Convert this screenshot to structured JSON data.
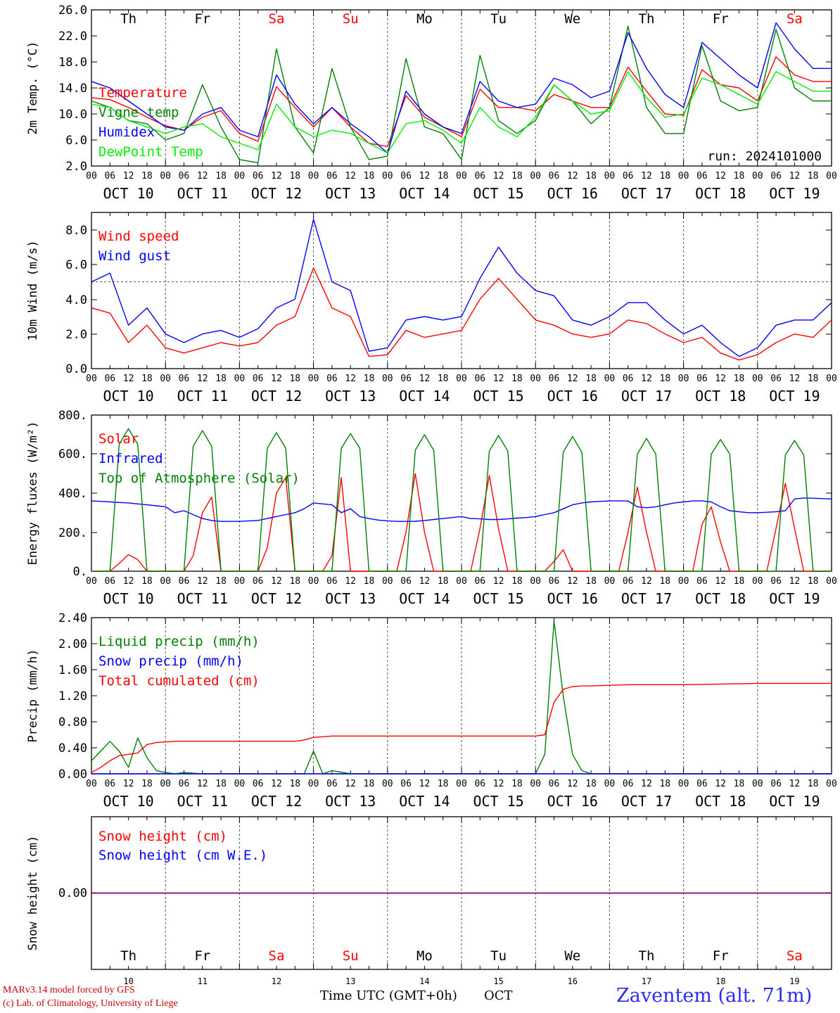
{
  "days": [
    {
      "dow": "Th",
      "weekend": false,
      "date": "OCT 10",
      "num": "10"
    },
    {
      "dow": "Fr",
      "weekend": false,
      "date": "OCT 11",
      "num": "11"
    },
    {
      "dow": "Sa",
      "weekend": true,
      "date": "OCT 12",
      "num": "12"
    },
    {
      "dow": "Su",
      "weekend": true,
      "date": "OCT 13",
      "num": "13"
    },
    {
      "dow": "Mo",
      "weekend": false,
      "date": "OCT 14",
      "num": "14"
    },
    {
      "dow": "Tu",
      "weekend": false,
      "date": "OCT 15",
      "num": "15"
    },
    {
      "dow": "We",
      "weekend": false,
      "date": "OCT 16",
      "num": "16"
    },
    {
      "dow": "Th",
      "weekend": false,
      "date": "OCT 17",
      "num": "17"
    },
    {
      "dow": "Fr",
      "weekend": false,
      "date": "OCT 18",
      "num": "18"
    },
    {
      "dow": "Sa",
      "weekend": true,
      "date": "OCT 19",
      "num": "19"
    }
  ],
  "hour_ticks": [
    "00",
    "06",
    "12",
    "18"
  ],
  "end_tick": "00",
  "colors": {
    "red": "#ff0000",
    "green": "#008000",
    "blue": "#0000ff",
    "lightgreen": "#00ee00",
    "purple": "#800080",
    "grid": "#555555"
  },
  "chart_data": [
    {
      "id": "temp",
      "type": "line",
      "ylabel": "2m Temp. (°C)",
      "ylim": [
        2,
        26
      ],
      "yticks": [
        "26.0",
        "22.0",
        "18.0",
        "14.0",
        "10.0",
        "6.0",
        "2.0"
      ],
      "note": "run: 2024101000",
      "x_hours": [
        0,
        6,
        12,
        18,
        24,
        30,
        36,
        42,
        48,
        54,
        60,
        66,
        72,
        78,
        84,
        90,
        96,
        102,
        108,
        114,
        120,
        126,
        132,
        138,
        144,
        150,
        156,
        162,
        168,
        174,
        180,
        186,
        192,
        198,
        204,
        210,
        216,
        222,
        228,
        234,
        240
      ],
      "series": [
        {
          "name": "Temperature",
          "color": "red",
          "values": [
            12.5,
            12.2,
            11.0,
            9.5,
            8.2,
            7.5,
            9.5,
            10.5,
            7.0,
            5.8,
            14.2,
            11.0,
            8.0,
            11.0,
            8.0,
            5.5,
            5.0,
            12.8,
            9.5,
            8.0,
            6.5,
            13.8,
            11.0,
            11.0,
            10.5,
            13.0,
            12.0,
            11.0,
            11.0,
            17.2,
            13.5,
            10.0,
            9.8,
            16.8,
            14.5,
            14.0,
            12.0,
            18.8,
            16.0,
            15.0,
            15.0
          ]
        },
        {
          "name": "Vigne temp",
          "color": "green",
          "values": [
            12.0,
            11.0,
            9.0,
            8.5,
            6.0,
            7.0,
            14.5,
            8.0,
            3.0,
            2.5,
            20.0,
            8.0,
            4.0,
            17.0,
            8.0,
            3.0,
            3.5,
            18.5,
            8.0,
            7.0,
            3.0,
            19.0,
            9.0,
            7.0,
            9.0,
            14.5,
            12.0,
            8.5,
            11.0,
            23.5,
            11.0,
            7.0,
            7.0,
            20.5,
            12.0,
            10.5,
            11.0,
            23.0,
            14.0,
            12.0,
            12.0
          ]
        },
        {
          "name": "Humidex",
          "color": "blue",
          "values": [
            15.0,
            14.0,
            12.0,
            10.0,
            8.0,
            7.5,
            10.0,
            11.0,
            7.5,
            6.5,
            16.0,
            11.5,
            8.5,
            11.0,
            8.5,
            6.5,
            4.0,
            13.5,
            10.0,
            8.0,
            7.0,
            15.0,
            12.0,
            11.0,
            11.5,
            15.5,
            14.5,
            12.5,
            13.5,
            22.5,
            17.0,
            13.0,
            11.0,
            21.0,
            18.5,
            16.0,
            14.0,
            24.0,
            20.0,
            17.0,
            17.0
          ]
        },
        {
          "name": "DewPoint Temp",
          "color": "lightgreen",
          "values": [
            11.5,
            11.0,
            9.0,
            8.0,
            7.0,
            8.0,
            8.5,
            6.5,
            5.5,
            4.5,
            11.5,
            8.0,
            6.5,
            7.5,
            7.0,
            5.5,
            4.0,
            8.5,
            9.0,
            7.5,
            5.5,
            11.0,
            8.0,
            6.5,
            9.5,
            14.5,
            12.0,
            10.0,
            10.5,
            16.5,
            12.5,
            9.5,
            10.0,
            15.5,
            14.5,
            13.0,
            11.5,
            16.5,
            15.0,
            13.5,
            13.5
          ]
        }
      ]
    },
    {
      "id": "wind",
      "type": "line",
      "ylabel": "10m Wind (m/s)",
      "ylim": [
        0,
        9
      ],
      "yticks": [
        "8.0",
        "6.0",
        "4.0",
        "2.0",
        "0.0"
      ],
      "ref_line": 5.0,
      "x_hours": [
        0,
        6,
        12,
        18,
        24,
        30,
        36,
        42,
        48,
        54,
        60,
        66,
        72,
        78,
        84,
        90,
        96,
        102,
        108,
        114,
        120,
        126,
        132,
        138,
        144,
        150,
        156,
        162,
        168,
        174,
        180,
        186,
        192,
        198,
        204,
        210,
        216,
        222,
        228,
        234,
        240
      ],
      "series": [
        {
          "name": "Wind speed",
          "color": "red",
          "values": [
            3.5,
            3.2,
            1.5,
            2.5,
            1.2,
            0.9,
            1.2,
            1.5,
            1.3,
            1.5,
            2.5,
            3.0,
            5.8,
            3.5,
            3.0,
            0.7,
            0.8,
            2.2,
            1.8,
            2.0,
            2.2,
            4.0,
            5.2,
            4.0,
            2.8,
            2.5,
            2.0,
            1.8,
            2.0,
            2.8,
            2.6,
            2.0,
            1.5,
            1.8,
            0.9,
            0.5,
            0.8,
            1.5,
            2.0,
            1.8,
            2.8
          ]
        },
        {
          "name": "Wind gust",
          "color": "blue",
          "values": [
            5.0,
            5.5,
            2.5,
            3.5,
            2.0,
            1.5,
            2.0,
            2.2,
            1.8,
            2.3,
            3.5,
            4.0,
            8.6,
            5.0,
            4.5,
            1.0,
            1.2,
            2.8,
            3.0,
            2.8,
            3.0,
            5.2,
            7.0,
            5.5,
            4.5,
            4.2,
            2.8,
            2.5,
            3.0,
            3.8,
            3.8,
            2.8,
            2.0,
            2.5,
            1.5,
            0.7,
            1.2,
            2.5,
            2.8,
            2.8,
            3.8
          ]
        }
      ]
    },
    {
      "id": "flux",
      "type": "line",
      "ylabel": "Energy fluxes (W/m²)",
      "ylim": [
        0,
        800
      ],
      "yticks": [
        "800.",
        "600.",
        "400.",
        "200.",
        "0."
      ],
      "x_hours": [
        0,
        3,
        6,
        9,
        12,
        15,
        18,
        21,
        24,
        27,
        30,
        33,
        36,
        39,
        42,
        45,
        48,
        51,
        54,
        57,
        60,
        63,
        66,
        69,
        72,
        75,
        78,
        81,
        84,
        87,
        90,
        93,
        96,
        99,
        102,
        105,
        108,
        111,
        114,
        117,
        120,
        123,
        126,
        129,
        132,
        135,
        138,
        141,
        144,
        147,
        150,
        153,
        156,
        159,
        162,
        165,
        168,
        171,
        174,
        177,
        180,
        183,
        186,
        189,
        192,
        195,
        198,
        201,
        204,
        207,
        210,
        213,
        216,
        219,
        222,
        225,
        228,
        231,
        234,
        237,
        240
      ],
      "series": [
        {
          "name": "Solar",
          "color": "red",
          "values": [
            0,
            0,
            0,
            40,
            85,
            60,
            0,
            0,
            0,
            0,
            0,
            80,
            300,
            380,
            0,
            0,
            0,
            0,
            0,
            120,
            400,
            480,
            0,
            0,
            0,
            0,
            80,
            480,
            0,
            0,
            0,
            0,
            0,
            0,
            200,
            500,
            200,
            0,
            0,
            0,
            0,
            0,
            220,
            490,
            220,
            0,
            0,
            0,
            0,
            0,
            50,
            110,
            0,
            0,
            0,
            0,
            0,
            0,
            200,
            430,
            200,
            0,
            0,
            0,
            0,
            0,
            240,
            330,
            150,
            0,
            0,
            0,
            0,
            0,
            220,
            450,
            220,
            0,
            0,
            0,
            0
          ]
        },
        {
          "name": "Infrared",
          "color": "blue",
          "values": [
            360,
            358,
            355,
            352,
            350,
            345,
            340,
            335,
            330,
            300,
            310,
            290,
            270,
            260,
            255,
            255,
            255,
            258,
            260,
            270,
            280,
            290,
            300,
            320,
            350,
            345,
            340,
            300,
            320,
            280,
            270,
            262,
            258,
            255,
            255,
            256,
            260,
            265,
            270,
            275,
            280,
            270,
            268,
            265,
            265,
            268,
            272,
            275,
            280,
            290,
            300,
            320,
            340,
            350,
            355,
            358,
            360,
            360,
            360,
            330,
            325,
            330,
            340,
            350,
            355,
            360,
            360,
            355,
            330,
            310,
            305,
            300,
            300,
            302,
            305,
            310,
            370,
            375,
            374,
            372,
            370
          ]
        },
        {
          "name": "Top of Atmosphere (Solar)",
          "color": "green",
          "values": [
            0,
            0,
            0,
            650,
            730,
            650,
            0,
            0,
            0,
            0,
            0,
            640,
            720,
            640,
            0,
            0,
            0,
            0,
            0,
            630,
            710,
            630,
            0,
            0,
            0,
            0,
            0,
            630,
            705,
            630,
            0,
            0,
            0,
            0,
            0,
            620,
            700,
            620,
            0,
            0,
            0,
            0,
            0,
            615,
            695,
            615,
            0,
            0,
            0,
            0,
            0,
            610,
            690,
            610,
            0,
            0,
            0,
            0,
            0,
            600,
            680,
            600,
            0,
            0,
            0,
            0,
            0,
            600,
            675,
            600,
            0,
            0,
            0,
            0,
            0,
            595,
            670,
            595,
            0,
            0,
            0
          ]
        }
      ]
    },
    {
      "id": "precip",
      "type": "line",
      "ylabel": "Precip (mm/h)",
      "ylim": [
        0,
        2.4
      ],
      "yticks": [
        "2.40",
        "2.00",
        "1.60",
        "1.20",
        "0.80",
        "0.40",
        "0.00"
      ],
      "x_hours": [
        0,
        3,
        6,
        9,
        12,
        15,
        18,
        21,
        24,
        27,
        30,
        36,
        42,
        48,
        54,
        60,
        66,
        69,
        72,
        75,
        78,
        84,
        90,
        96,
        102,
        108,
        114,
        120,
        126,
        132,
        138,
        144,
        147,
        150,
        153,
        156,
        159,
        162,
        168,
        174,
        180,
        192,
        204,
        216,
        228,
        240
      ],
      "series": [
        {
          "name": "Liquid precip (mm/h)",
          "color": "green",
          "values": [
            0.2,
            0.35,
            0.5,
            0.35,
            0.1,
            0.55,
            0.25,
            0.05,
            0.02,
            0.0,
            0.02,
            0.0,
            0.0,
            0.0,
            0.0,
            0.0,
            0.0,
            0.0,
            0.35,
            0.0,
            0.05,
            0.0,
            0.0,
            0.0,
            0.0,
            0.0,
            0.0,
            0.0,
            0.0,
            0.0,
            0.0,
            0.0,
            0.3,
            2.35,
            1.2,
            0.3,
            0.05,
            0.0,
            0.0,
            0.0,
            0.0,
            0.0,
            0.0,
            0.0,
            0.0,
            0.0
          ]
        },
        {
          "name": "Snow precip (mm/h)",
          "color": "blue",
          "values": [
            0,
            0,
            0,
            0,
            0,
            0,
            0,
            0,
            0,
            0,
            0,
            0,
            0,
            0,
            0,
            0,
            0,
            0,
            0,
            0,
            0,
            0,
            0,
            0,
            0,
            0,
            0,
            0,
            0,
            0,
            0,
            0,
            0,
            0,
            0,
            0,
            0,
            0,
            0,
            0,
            0,
            0,
            0,
            0,
            0,
            0
          ]
        },
        {
          "name": "Total cumulated (cm)",
          "color": "red",
          "values": [
            0.02,
            0.1,
            0.2,
            0.28,
            0.3,
            0.32,
            0.45,
            0.48,
            0.49,
            0.5,
            0.5,
            0.5,
            0.5,
            0.5,
            0.5,
            0.5,
            0.5,
            0.52,
            0.56,
            0.57,
            0.58,
            0.58,
            0.58,
            0.58,
            0.58,
            0.58,
            0.58,
            0.58,
            0.58,
            0.58,
            0.58,
            0.58,
            0.6,
            1.1,
            1.3,
            1.34,
            1.35,
            1.35,
            1.36,
            1.37,
            1.37,
            1.37,
            1.38,
            1.39,
            1.39,
            1.39
          ]
        }
      ]
    },
    {
      "id": "snow",
      "type": "line",
      "ylabel": "Snow height (cm)",
      "ylim": [
        -1,
        1
      ],
      "yticks": [
        "0.00"
      ],
      "x_hours": [
        0,
        240
      ],
      "series": [
        {
          "name": "Snow height (cm)",
          "color": "red",
          "values": [
            0,
            0
          ]
        },
        {
          "name": "Snow height (cm W.E.)",
          "color": "blue",
          "values": [
            0,
            0
          ]
        }
      ]
    }
  ],
  "footer": {
    "model_line": "MARv3.14 model forced by GFS",
    "credit_line": "(c) Lab. of Climatology, University of Liege",
    "axis_title": "Time UTC (GMT+0h)",
    "month": "OCT",
    "station": "Zaventem (alt. 71m)"
  }
}
